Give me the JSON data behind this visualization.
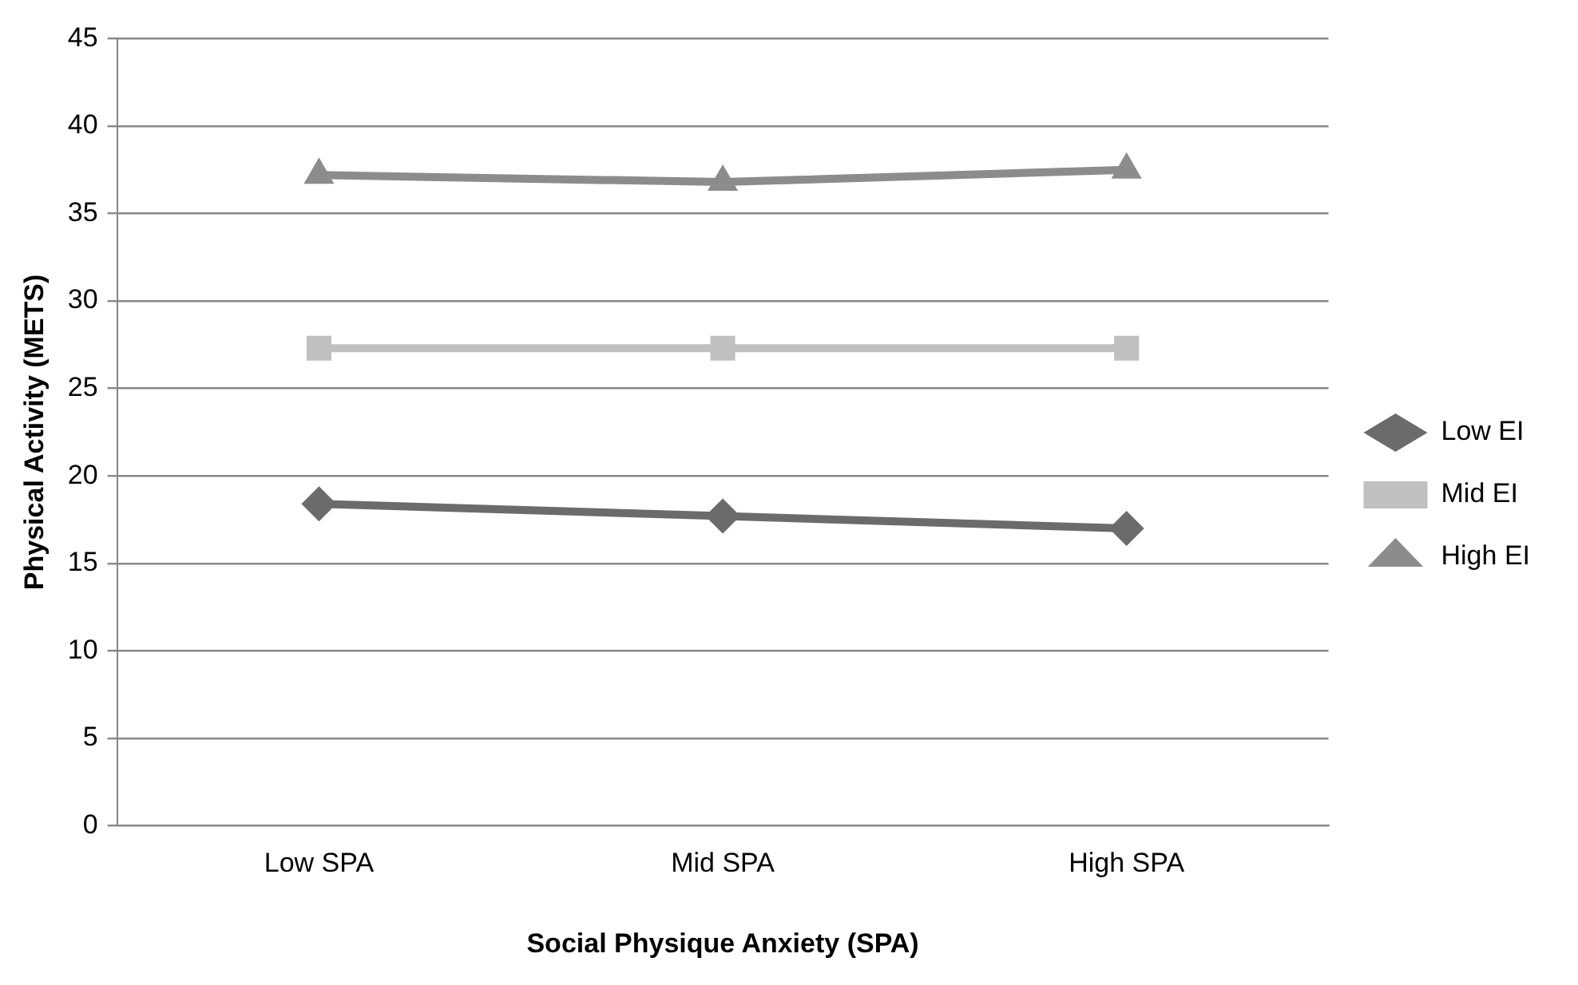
{
  "chart_data": {
    "type": "line",
    "xlabel": "Social Physique Anxiety (SPA)",
    "ylabel": "Physical Activity (METS)",
    "categories": [
      "Low SPA",
      "Mid SPA",
      "High SPA"
    ],
    "series": [
      {
        "name": "Low EI",
        "color": "#6b6b6b",
        "marker": "diamond",
        "values": [
          18.4,
          17.7,
          17.0
        ]
      },
      {
        "name": "Mid EI",
        "color": "#c0c0c0",
        "marker": "square",
        "values": [
          27.3,
          27.3,
          27.3
        ]
      },
      {
        "name": "High EI",
        "color": "#8c8c8c",
        "marker": "triangle",
        "values": [
          37.2,
          36.8,
          37.5
        ]
      }
    ],
    "ylim": [
      0,
      45
    ],
    "yticks": [
      0,
      5,
      10,
      15,
      20,
      25,
      30,
      35,
      40,
      45
    ],
    "grid": "y",
    "legend": "right",
    "line_style": "solid"
  }
}
